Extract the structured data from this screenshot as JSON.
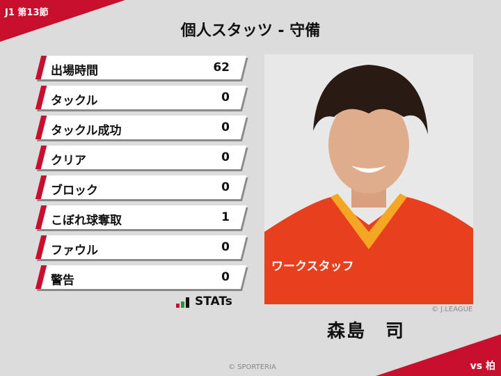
{
  "header": {
    "round": "J1 第13節",
    "title": "個人スタッツ - 守備",
    "opponent": "vs 柏"
  },
  "stats": [
    {
      "label": "出場時間",
      "value": "62"
    },
    {
      "label": "タックル",
      "value": "0"
    },
    {
      "label": "タックル成功",
      "value": "0"
    },
    {
      "label": "クリア",
      "value": "0"
    },
    {
      "label": "ブロック",
      "value": "0"
    },
    {
      "label": "こぼれ球奪取",
      "value": "1"
    },
    {
      "label": "ファウル",
      "value": "0"
    },
    {
      "label": "警告",
      "value": "0"
    }
  ],
  "logo": {
    "text": "STATs"
  },
  "player": {
    "name": "森島　司",
    "photo_credit": "© J.LEAGUE",
    "shirt_text": "ワークスタッフ"
  },
  "footer": {
    "credit": "© SPORTERIA"
  },
  "colors": {
    "accent": "#c8102e",
    "background": "#dcdcdc",
    "shirt": "#e8401f"
  }
}
